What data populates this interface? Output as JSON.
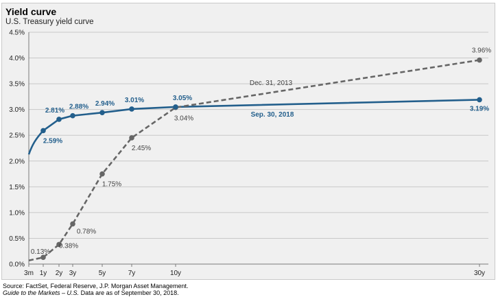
{
  "title": "Yield curve",
  "subtitle": "U.S. Treasury yield curve",
  "footer": {
    "source": "Source: FactSet, Federal Reserve, J.P. Morgan Asset Management.",
    "guide_italic": "Guide to the Markets – U.S.",
    "guide_rest": " Data are as of September 30, 2018."
  },
  "colors": {
    "sep2018": "#235f8c",
    "dec2013": "#666666",
    "background": "#f0f0f0"
  },
  "chart_data": {
    "type": "line",
    "x_categories": [
      "3m",
      "1y",
      "2y",
      "3y",
      "5y",
      "7y",
      "10y",
      "30y"
    ],
    "x_years": [
      0.25,
      1,
      2,
      3,
      5,
      7,
      10,
      30
    ],
    "yticks": [
      "0.0%",
      "0.5%",
      "1.0%",
      "1.5%",
      "2.0%",
      "2.5%",
      "3.0%",
      "3.5%",
      "4.0%",
      "4.5%"
    ],
    "ylim": [
      0,
      4.5
    ],
    "series": [
      {
        "name": "Sep. 30, 2018",
        "style": "solid",
        "color": "#235f8c",
        "x": [
          0.25,
          1,
          2,
          3,
          5,
          7,
          10,
          30
        ],
        "y": [
          2.13,
          2.59,
          2.81,
          2.88,
          2.94,
          3.01,
          3.05,
          3.19
        ],
        "markers": [
          1,
          2,
          3,
          5,
          7,
          10,
          30
        ],
        "labels": [
          {
            "x": 1,
            "text": "2.59%"
          },
          {
            "x": 2,
            "text": "2.81%"
          },
          {
            "x": 3,
            "text": "2.88%"
          },
          {
            "x": 5,
            "text": "2.94%"
          },
          {
            "x": 7,
            "text": "3.01%"
          },
          {
            "x": 10,
            "text": "3.05%"
          },
          {
            "x": 30,
            "text": "3.19%"
          }
        ]
      },
      {
        "name": "Dec. 31, 2013",
        "style": "dashed",
        "color": "#666666",
        "x": [
          0.25,
          1,
          2,
          3,
          5,
          7,
          10,
          30
        ],
        "y": [
          0.07,
          0.13,
          0.38,
          0.78,
          1.75,
          2.45,
          3.04,
          3.96
        ],
        "markers": [
          1,
          2,
          3,
          5,
          7,
          10,
          30
        ],
        "labels": [
          {
            "x": 1,
            "text": "0.13%"
          },
          {
            "x": 2,
            "text": "0.38%"
          },
          {
            "x": 3,
            "text": "0.78%"
          },
          {
            "x": 5,
            "text": "1.75%"
          },
          {
            "x": 7,
            "text": "2.45%"
          },
          {
            "x": 10,
            "text": "3.04%"
          },
          {
            "x": 30,
            "text": "3.96%"
          }
        ]
      }
    ],
    "grid": true
  }
}
